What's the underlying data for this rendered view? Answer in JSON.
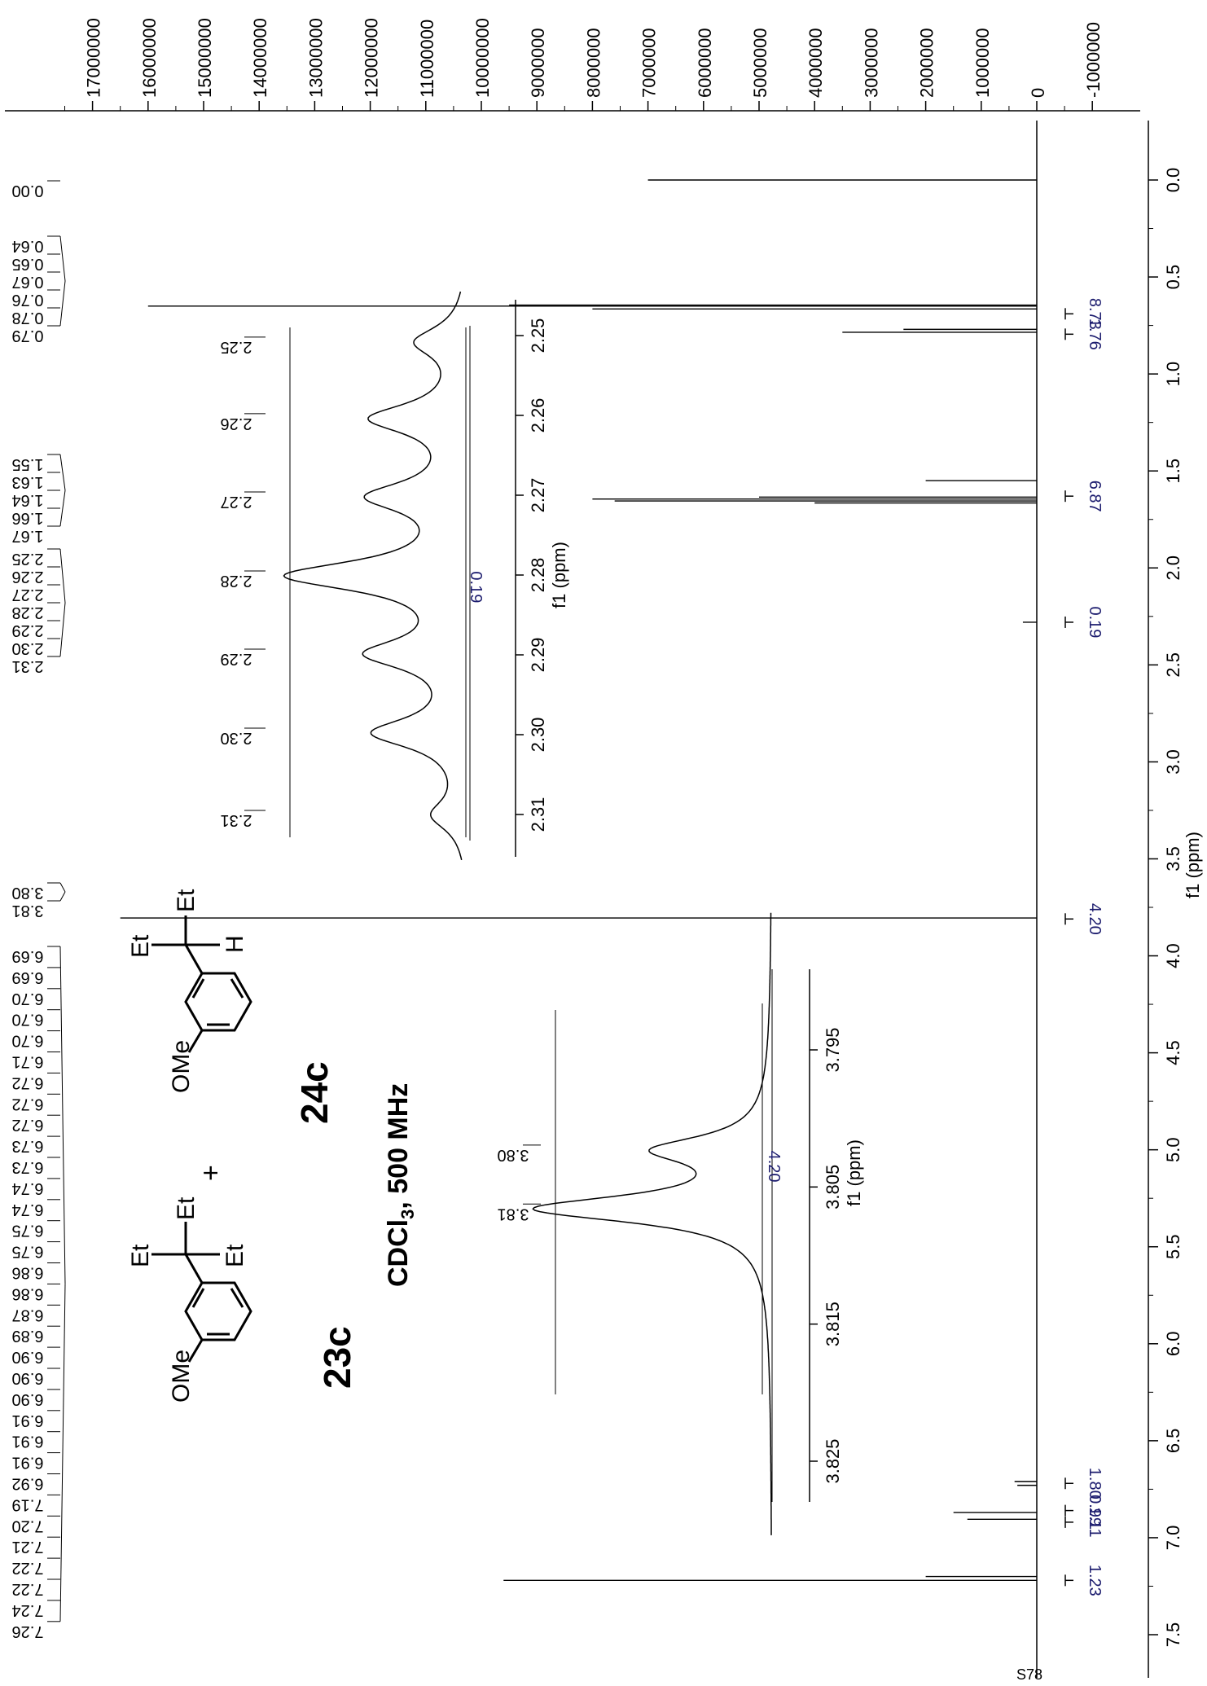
{
  "page": {
    "label": "S78"
  },
  "compound_labels": {
    "first": "23c",
    "second": "24c",
    "plus": "+",
    "substituent_a": "OMe",
    "substituent_b": "OMe",
    "et": "Et",
    "h": "H"
  },
  "conditions": {
    "solvent": "CDCl",
    "subscript": "3",
    "freq": ", 500 MHz"
  },
  "chart_data": [
    {
      "type": "line",
      "name": "main",
      "xlabel": "f1 (ppm)",
      "x_ticks": [
        "0.0",
        "0.5",
        "1.0",
        "1.5",
        "2.0",
        "2.5",
        "3.0",
        "3.5",
        "4.0",
        "4.5",
        "5.0",
        "5.5",
        "6.0",
        "6.5",
        "7.0",
        "7.5"
      ],
      "xlim": [
        -0.3,
        8.1
      ],
      "y_ticks": [
        "17000000",
        "16000000",
        "15000000",
        "14000000",
        "13000000",
        "12000000",
        "11000000",
        "10000000",
        "9000000",
        "8000000",
        "7000000",
        "6000000",
        "5000000",
        "4000000",
        "3000000",
        "2000000",
        "1000000",
        "0",
        "-1000000"
      ],
      "ylim": [
        -1700000,
        17600000
      ],
      "peak_labels": [
        "0.00",
        "0.64",
        "0.65",
        "0.67",
        "0.76",
        "0.78",
        "0.79",
        "1.55",
        "1.63",
        "1.64",
        "1.66",
        "1.67",
        "2.25",
        "2.26",
        "2.27",
        "2.28",
        "2.29",
        "2.30",
        "2.31",
        "3.80",
        "3.81",
        "6.69",
        "6.69",
        "6.70",
        "6.70",
        "6.70",
        "6.71",
        "6.72",
        "6.72",
        "6.72",
        "6.73",
        "6.73",
        "6.74",
        "6.74",
        "6.75",
        "6.75",
        "6.86",
        "6.86",
        "6.87",
        "6.89",
        "6.90",
        "6.90",
        "6.90",
        "6.91",
        "6.91",
        "6.91",
        "6.92",
        "7.19",
        "7.20",
        "7.21",
        "7.22",
        "7.22",
        "7.24",
        "7.26"
      ],
      "peaks": [
        {
          "ppm": 0.0,
          "height": 7000000
        },
        {
          "ppm": 0.645,
          "height": 9500000
        },
        {
          "ppm": 0.65,
          "height": 16000000
        },
        {
          "ppm": 0.665,
          "height": 8000000
        },
        {
          "ppm": 0.77,
          "height": 2400000
        },
        {
          "ppm": 0.785,
          "height": 3500000
        },
        {
          "ppm": 1.55,
          "height": 2000000
        },
        {
          "ppm": 1.635,
          "height": 5000000
        },
        {
          "ppm": 1.645,
          "height": 8000000
        },
        {
          "ppm": 1.655,
          "height": 7600000
        },
        {
          "ppm": 1.665,
          "height": 4000000
        },
        {
          "ppm": 2.28,
          "height": 250000
        },
        {
          "ppm": 3.805,
          "height": 16500000
        },
        {
          "ppm": 6.71,
          "height": 400000
        },
        {
          "ppm": 6.73,
          "height": 350000
        },
        {
          "ppm": 6.87,
          "height": 1500000
        },
        {
          "ppm": 6.905,
          "height": 1250000
        },
        {
          "ppm": 7.2,
          "height": 2000000
        },
        {
          "ppm": 7.22,
          "height": 9600000
        }
      ],
      "integrals": [
        {
          "value": "8.73",
          "ppm": 0.69
        },
        {
          "value": "1.76",
          "ppm": 0.795
        },
        {
          "value": "6.87",
          "ppm": 1.63
        },
        {
          "value": "0.19",
          "ppm": 2.28
        },
        {
          "value": "4.20",
          "ppm": 3.81
        },
        {
          "value": "1.80",
          "ppm": 6.72
        },
        {
          "value": "0.99",
          "ppm": 6.86
        },
        {
          "value": "1.11",
          "ppm": 6.92
        },
        {
          "value": "1.23",
          "ppm": 7.22
        }
      ]
    },
    {
      "type": "line",
      "name": "inset-upper",
      "xlabel": "f1 (ppm)",
      "x_ticks": [
        "2.25",
        "2.26",
        "2.27",
        "2.28",
        "2.29",
        "2.30",
        "2.31"
      ],
      "xlim": [
        2.2445,
        2.3157
      ],
      "peak_labels": [
        "2.25",
        "2.26",
        "2.27",
        "2.28",
        "2.29",
        "2.30",
        "2.31"
      ],
      "peaks": [
        {
          "ppm": 2.2508,
          "height": 0.27
        },
        {
          "ppm": 2.2604,
          "height": 0.51
        },
        {
          "ppm": 2.2702,
          "height": 0.5
        },
        {
          "ppm": 2.2801,
          "height": 0.97
        },
        {
          "ppm": 2.2899,
          "height": 0.51
        },
        {
          "ppm": 2.2998,
          "height": 0.5
        },
        {
          "ppm": 2.3101,
          "height": 0.18
        }
      ],
      "integral": {
        "value": "0.19",
        "ppm": 2.2805
      }
    },
    {
      "type": "line",
      "name": "inset-lower",
      "xlabel": "f1 (ppm)",
      "x_ticks": [
        "3.795",
        "3.805",
        "3.815",
        "3.825"
      ],
      "xlim": [
        3.785,
        3.8305
      ],
      "peak_labels": [
        "3.80",
        "3.81"
      ],
      "peaks": [
        {
          "ppm": 3.8023,
          "height": 0.45
        },
        {
          "ppm": 3.8066,
          "height": 0.98
        }
      ],
      "integral": {
        "value": "4.20",
        "ppm": 3.8035
      }
    }
  ]
}
